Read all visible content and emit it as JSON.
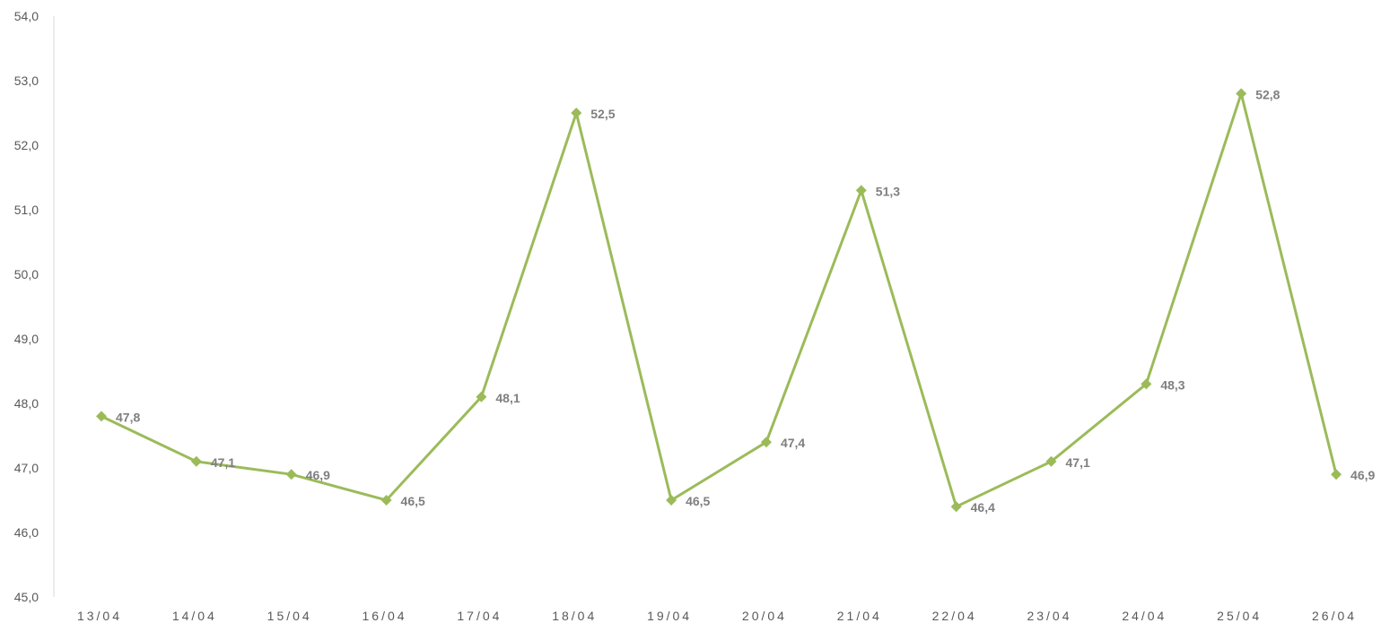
{
  "chart_data": {
    "type": "line",
    "title": "",
    "xlabel": "",
    "ylabel": "",
    "categories": [
      "13/04",
      "14/04",
      "15/04",
      "16/04",
      "17/04",
      "18/04",
      "19/04",
      "20/04",
      "21/04",
      "22/04",
      "23/04",
      "24/04",
      "25/04",
      "26/04"
    ],
    "series": [
      {
        "values": [
          47.8,
          47.1,
          46.9,
          46.5,
          48.1,
          52.5,
          46.5,
          47.4,
          51.3,
          46.4,
          47.1,
          48.3,
          52.8,
          46.9
        ],
        "color": "#9bbb59",
        "marker": "diamond"
      }
    ],
    "data_labels": [
      "47,8",
      "47,1",
      "46,9",
      "46,5",
      "48,1",
      "52,5",
      "46,5",
      "47,4",
      "51,3",
      "46,4",
      "47,1",
      "48,3",
      "52,8",
      "46,9"
    ],
    "ylim": [
      45.0,
      54.0
    ],
    "ytick_labels": [
      "45,0",
      "46,0",
      "47,0",
      "48,0",
      "49,0",
      "50,0",
      "51,0",
      "52,0",
      "53,0",
      "54,0"
    ],
    "grid": false,
    "legend": "none"
  }
}
